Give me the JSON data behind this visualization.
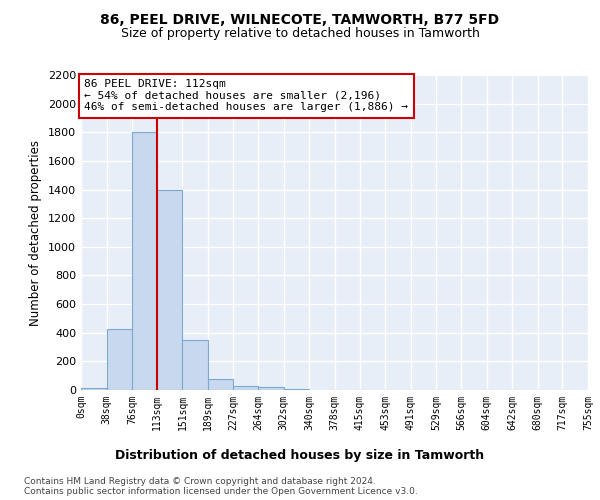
{
  "title1": "86, PEEL DRIVE, WILNECOTE, TAMWORTH, B77 5FD",
  "title2": "Size of property relative to detached houses in Tamworth",
  "xlabel": "Distribution of detached houses by size in Tamworth",
  "ylabel": "Number of detached properties",
  "bar_color": "#c8d8ee",
  "bar_edge_color": "#7aaad0",
  "vline_x": 113,
  "vline_color": "#cc0000",
  "bin_edges": [
    0,
    38,
    76,
    113,
    151,
    189,
    227,
    264,
    302,
    340,
    378,
    415,
    453,
    491,
    529,
    566,
    604,
    642,
    680,
    717,
    755
  ],
  "bin_labels": [
    "0sqm",
    "38sqm",
    "76sqm",
    "113sqm",
    "151sqm",
    "189sqm",
    "227sqm",
    "264sqm",
    "302sqm",
    "340sqm",
    "378sqm",
    "415sqm",
    "453sqm",
    "491sqm",
    "529sqm",
    "566sqm",
    "604sqm",
    "642sqm",
    "680sqm",
    "717sqm",
    "755sqm"
  ],
  "bar_heights": [
    15,
    425,
    1800,
    1400,
    350,
    75,
    28,
    18,
    5,
    0,
    0,
    0,
    0,
    0,
    0,
    0,
    0,
    0,
    0,
    0
  ],
  "ylim": [
    0,
    2200
  ],
  "yticks": [
    0,
    200,
    400,
    600,
    800,
    1000,
    1200,
    1400,
    1600,
    1800,
    2000,
    2200
  ],
  "annotation_text": "86 PEEL DRIVE: 112sqm\n← 54% of detached houses are smaller (2,196)\n46% of semi-detached houses are larger (1,886) →",
  "annotation_box_color": "#ffffff",
  "annotation_box_edge": "#cc0000",
  "footer1": "Contains HM Land Registry data © Crown copyright and database right 2024.",
  "footer2": "Contains public sector information licensed under the Open Government Licence v3.0.",
  "background_color": "#ffffff",
  "plot_bg_color": "#e8eef8",
  "grid_color": "#ffffff"
}
